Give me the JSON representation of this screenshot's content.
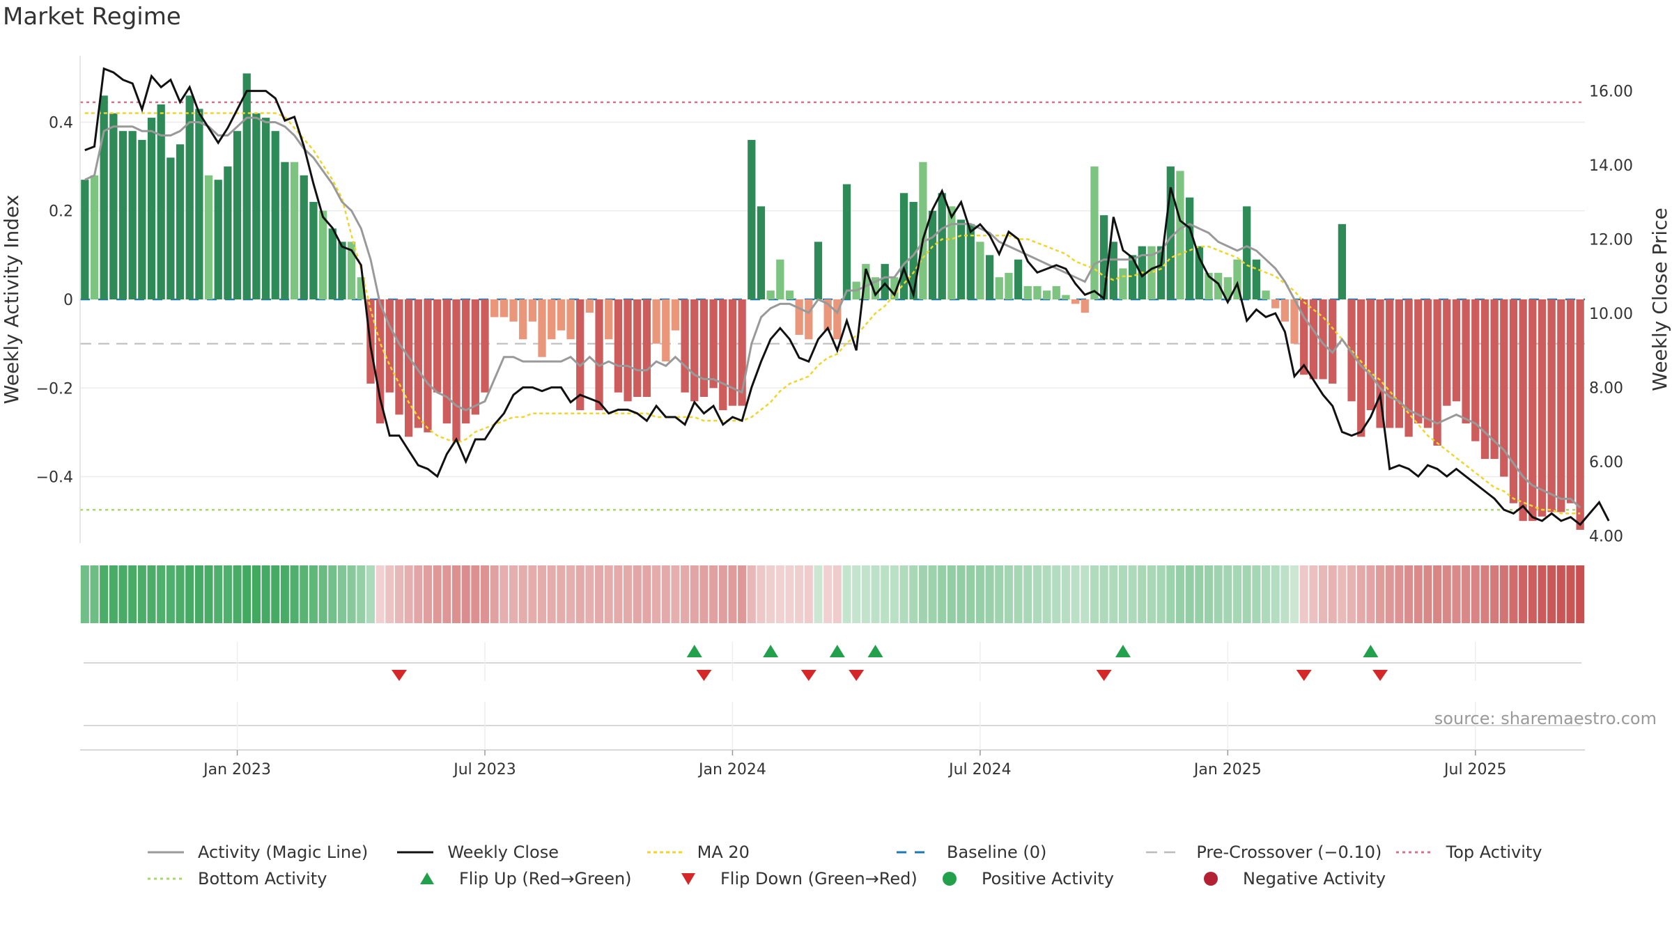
{
  "title": "Market Regime",
  "source": "source: sharemaestro.com",
  "colors": {
    "dark_green": "#2e8b57",
    "light_green": "#7cc47f",
    "dark_red": "#cd5c5c",
    "light_red": "#e9967a",
    "magic_line": "#999999",
    "close": "#111111",
    "ma20": "#f0d52a",
    "baseline": "#1f77b4",
    "pre_crossover": "#bbbbbb",
    "top_activity": "#d6708b",
    "bottom_activity": "#a6d96a",
    "flip_up": "#22a04b",
    "flip_down": "#d62728"
  },
  "legend": [
    {
      "key": "magic",
      "label": "Activity (Magic Line)"
    },
    {
      "key": "close",
      "label": "Weekly Close"
    },
    {
      "key": "ma20",
      "label": "MA 20"
    },
    {
      "key": "baseline",
      "label": "Baseline (0)"
    },
    {
      "key": "pre",
      "label": "Pre-Crossover (−0.10)"
    },
    {
      "key": "top",
      "label": "Top Activity"
    },
    {
      "key": "bottom",
      "label": "Bottom Activity"
    },
    {
      "key": "flipup",
      "label": "Flip Up (Red→Green)"
    },
    {
      "key": "flipdown",
      "label": "Flip Down (Green→Red)"
    },
    {
      "key": "pos",
      "label": "Positive Activity"
    },
    {
      "key": "neg",
      "label": "Negative Activity"
    }
  ],
  "chart_data": {
    "type": "bar",
    "title": "Market Regime",
    "ylabel_left": "Weekly Activity Index",
    "ylabel_right": "Weekly Close Price",
    "y_left_ticks": [
      {
        "v": 0.4,
        "label": "0.4"
      },
      {
        "v": 0.2,
        "label": "0.2"
      },
      {
        "v": 0,
        "label": "0"
      },
      {
        "v": -0.2,
        "label": "−0.2"
      },
      {
        "v": -0.4,
        "label": "−0.4"
      }
    ],
    "y_right_ticks": [
      {
        "v": 16,
        "label": "16.00"
      },
      {
        "v": 14,
        "label": "14.00"
      },
      {
        "v": 12,
        "label": "12.00"
      },
      {
        "v": 10,
        "label": "10.00"
      },
      {
        "v": 8,
        "label": "8.00"
      },
      {
        "v": 6,
        "label": "6.00"
      },
      {
        "v": 4,
        "label": "4.00"
      }
    ],
    "ylim_left": [
      -0.55,
      0.55
    ],
    "ylim_right": [
      3.8,
      16.95
    ],
    "x_ticks": [
      {
        "week": 16,
        "label": "Jan 2023"
      },
      {
        "week": 42,
        "label": "Jul 2023"
      },
      {
        "week": 68,
        "label": "Jan 2024"
      },
      {
        "week": 94,
        "label": "Jul 2024"
      },
      {
        "week": 120,
        "label": "Jan 2025"
      },
      {
        "week": 146,
        "label": "Jul 2025"
      }
    ],
    "top_activity": 0.445,
    "bottom_activity": -0.475,
    "pre_crossover": -0.1,
    "baseline": 0,
    "activity": [
      0.27,
      0.28,
      0.46,
      0.42,
      0.38,
      0.38,
      0.36,
      0.41,
      0.44,
      0.32,
      0.35,
      0.46,
      0.43,
      0.28,
      0.27,
      0.3,
      0.38,
      0.51,
      0.42,
      0.41,
      0.38,
      0.31,
      0.31,
      0.28,
      0.22,
      0.2,
      0.16,
      0.13,
      0.13,
      0.05,
      -0.19,
      -0.28,
      -0.21,
      -0.26,
      -0.31,
      -0.29,
      -0.3,
      -0.21,
      -0.28,
      -0.32,
      -0.28,
      -0.26,
      -0.21,
      -0.04,
      -0.04,
      -0.05,
      -0.09,
      -0.05,
      -0.13,
      -0.09,
      -0.07,
      -0.09,
      -0.25,
      -0.03,
      -0.25,
      -0.09,
      -0.21,
      -0.23,
      -0.22,
      -0.22,
      -0.1,
      -0.14,
      -0.07,
      -0.21,
      -0.23,
      -0.22,
      -0.2,
      -0.25,
      -0.24,
      -0.24,
      0.36,
      0.21,
      0.02,
      0.09,
      0.02,
      -0.08,
      -0.09,
      0.13,
      -0.07,
      -0.09,
      0.26,
      0.04,
      0.08,
      0.05,
      0.08,
      0.05,
      0.24,
      0.22,
      0.31,
      0.2,
      0.24,
      0.21,
      0.18,
      0.17,
      0.13,
      0.1,
      0.05,
      0.06,
      0.09,
      0.03,
      0.03,
      0.02,
      0.03,
      0.01,
      -0.01,
      -0.03,
      0.3,
      0.19,
      0.13,
      0.07,
      0.1,
      0.12,
      0.12,
      0.12,
      0.3,
      0.29,
      0.23,
      0.12,
      0.06,
      0.06,
      0.05,
      0.09,
      0.21,
      0.09,
      0.02,
      -0.02,
      -0.05,
      -0.1,
      -0.17,
      -0.18,
      -0.18,
      -0.19,
      0.17,
      -0.23,
      -0.31,
      -0.25,
      -0.29,
      -0.29,
      -0.29,
      -0.31,
      -0.28,
      -0.29,
      -0.33,
      -0.24,
      -0.23,
      -0.28,
      -0.32,
      -0.36,
      -0.36,
      -0.4,
      -0.46,
      -0.5,
      -0.5,
      -0.49,
      -0.48,
      -0.48,
      -0.46,
      -0.52
    ],
    "magic_line": [
      0.27,
      0.28,
      0.38,
      0.39,
      0.39,
      0.39,
      0.38,
      0.38,
      0.37,
      0.37,
      0.38,
      0.4,
      0.4,
      0.39,
      0.37,
      0.37,
      0.39,
      0.41,
      0.41,
      0.4,
      0.4,
      0.39,
      0.37,
      0.34,
      0.32,
      0.29,
      0.26,
      0.22,
      0.2,
      0.16,
      0.09,
      -0.01,
      -0.06,
      -0.1,
      -0.13,
      -0.16,
      -0.19,
      -0.21,
      -0.22,
      -0.24,
      -0.25,
      -0.24,
      -0.23,
      -0.18,
      -0.13,
      -0.13,
      -0.14,
      -0.14,
      -0.14,
      -0.14,
      -0.14,
      -0.13,
      -0.15,
      -0.13,
      -0.15,
      -0.14,
      -0.15,
      -0.15,
      -0.16,
      -0.16,
      -0.14,
      -0.15,
      -0.13,
      -0.15,
      -0.17,
      -0.18,
      -0.18,
      -0.19,
      -0.2,
      -0.21,
      -0.1,
      -0.04,
      -0.02,
      -0.01,
      -0.01,
      -0.02,
      -0.03,
      0.0,
      -0.01,
      -0.03,
      0.02,
      0.02,
      0.03,
      0.04,
      0.05,
      0.05,
      0.08,
      0.1,
      0.13,
      0.14,
      0.16,
      0.17,
      0.17,
      0.17,
      0.16,
      0.15,
      0.13,
      0.12,
      0.11,
      0.1,
      0.09,
      0.08,
      0.07,
      0.06,
      0.05,
      0.04,
      0.08,
      0.09,
      0.09,
      0.09,
      0.09,
      0.1,
      0.1,
      0.11,
      0.14,
      0.16,
      0.17,
      0.16,
      0.15,
      0.13,
      0.12,
      0.11,
      0.12,
      0.11,
      0.09,
      0.07,
      0.04,
      0.0,
      -0.04,
      -0.07,
      -0.1,
      -0.12,
      -0.09,
      -0.12,
      -0.15,
      -0.17,
      -0.2,
      -0.22,
      -0.23,
      -0.25,
      -0.26,
      -0.27,
      -0.28,
      -0.27,
      -0.26,
      -0.27,
      -0.28,
      -0.3,
      -0.32,
      -0.34,
      -0.37,
      -0.4,
      -0.42,
      -0.43,
      -0.44,
      -0.45,
      -0.45,
      -0.47
    ],
    "weekly_close": [
      14.4,
      14.5,
      16.6,
      16.5,
      16.3,
      16.2,
      15.5,
      16.4,
      16.1,
      16.3,
      15.7,
      16.1,
      15.4,
      15.0,
      14.6,
      15.0,
      15.5,
      16.0,
      16.0,
      16.0,
      15.8,
      15.2,
      15.3,
      14.5,
      13.5,
      12.6,
      12.3,
      11.8,
      11.7,
      11.3,
      9.1,
      7.7,
      6.7,
      6.7,
      6.3,
      5.9,
      5.8,
      5.6,
      6.2,
      6.6,
      6.0,
      6.6,
      6.6,
      7.0,
      7.3,
      7.8,
      8.0,
      8.0,
      7.9,
      8.0,
      8.0,
      7.6,
      7.8,
      7.7,
      7.6,
      7.3,
      7.4,
      7.4,
      7.3,
      7.1,
      7.5,
      7.2,
      7.2,
      7.0,
      7.6,
      7.3,
      7.5,
      7.0,
      7.2,
      7.1,
      8.0,
      8.7,
      9.3,
      9.6,
      9.3,
      8.8,
      8.7,
      9.3,
      9.6,
      9.0,
      9.8,
      9.0,
      11.2,
      10.5,
      10.8,
      10.5,
      11.2,
      10.5,
      12.0,
      12.8,
      13.3,
      12.6,
      13.0,
      12.2,
      12.4,
      12.1,
      11.6,
      12.2,
      12.0,
      11.4,
      11.1,
      11.2,
      11.3,
      11.2,
      10.8,
      10.5,
      10.6,
      10.4,
      12.6,
      11.7,
      11.5,
      11.0,
      11.2,
      11.3,
      13.4,
      12.5,
      12.3,
      11.5,
      11.0,
      10.8,
      10.3,
      10.8,
      9.8,
      10.1,
      9.9,
      10.0,
      9.5,
      8.3,
      8.6,
      8.2,
      7.8,
      7.5,
      6.8,
      6.7,
      6.8,
      7.2,
      7.8,
      5.8,
      5.9,
      5.8,
      5.6,
      5.9,
      5.8,
      5.6,
      5.8,
      5.6,
      5.4,
      5.2,
      5.0,
      4.7,
      4.6,
      4.8,
      4.5,
      4.4,
      4.6,
      4.4,
      4.5,
      4.3,
      4.6,
      4.9,
      4.4
    ],
    "ma20": [
      15.4,
      15.4,
      15.4,
      15.4,
      15.4,
      15.4,
      15.4,
      15.4,
      15.4,
      15.4,
      15.4,
      15.4,
      15.4,
      15.4,
      15.4,
      15.4,
      15.4,
      15.4,
      15.4,
      15.4,
      15.4,
      15.3,
      15.0,
      14.7,
      14.4,
      14.0,
      13.6,
      13.1,
      12.1,
      11.2,
      10.1,
      9.2,
      8.6,
      8.1,
      7.6,
      7.2,
      6.9,
      6.7,
      6.6,
      6.5,
      6.6,
      6.8,
      6.9,
      7.0,
      7.1,
      7.2,
      7.2,
      7.3,
      7.3,
      7.3,
      7.3,
      7.3,
      7.3,
      7.3,
      7.3,
      7.3,
      7.3,
      7.3,
      7.3,
      7.3,
      7.2,
      7.2,
      7.2,
      7.2,
      7.2,
      7.1,
      7.1,
      7.1,
      7.1,
      7.1,
      7.2,
      7.4,
      7.6,
      7.9,
      8.1,
      8.2,
      8.3,
      8.6,
      8.8,
      8.9,
      9.2,
      9.4,
      9.7,
      10.0,
      10.2,
      10.5,
      10.8,
      11.1,
      11.5,
      11.8,
      12.0,
      12.0,
      12.1,
      12.1,
      12.1,
      12.1,
      12.1,
      12.1,
      12.0,
      12.0,
      11.9,
      11.8,
      11.7,
      11.6,
      11.4,
      11.3,
      11.2,
      11.0,
      10.9,
      11.0,
      11.0,
      11.1,
      11.1,
      11.2,
      11.5,
      11.6,
      11.7,
      11.8,
      11.8,
      11.7,
      11.6,
      11.5,
      11.3,
      11.2,
      11.1,
      11.0,
      10.8,
      10.6,
      10.3,
      10.1,
      9.9,
      9.6,
      9.3,
      9.0,
      8.7,
      8.4,
      8.2,
      7.9,
      7.6,
      7.3,
      7.0,
      6.7,
      6.5,
      6.3,
      6.1,
      5.9,
      5.7,
      5.5,
      5.3,
      5.2,
      5.0,
      4.9,
      4.8,
      4.7,
      4.7,
      4.6,
      4.6,
      4.6
    ],
    "flip_up_weeks": [
      64,
      72,
      79,
      83,
      109,
      135
    ],
    "flip_down_weeks": [
      33,
      65,
      76,
      81,
      107,
      128,
      136
    ]
  }
}
